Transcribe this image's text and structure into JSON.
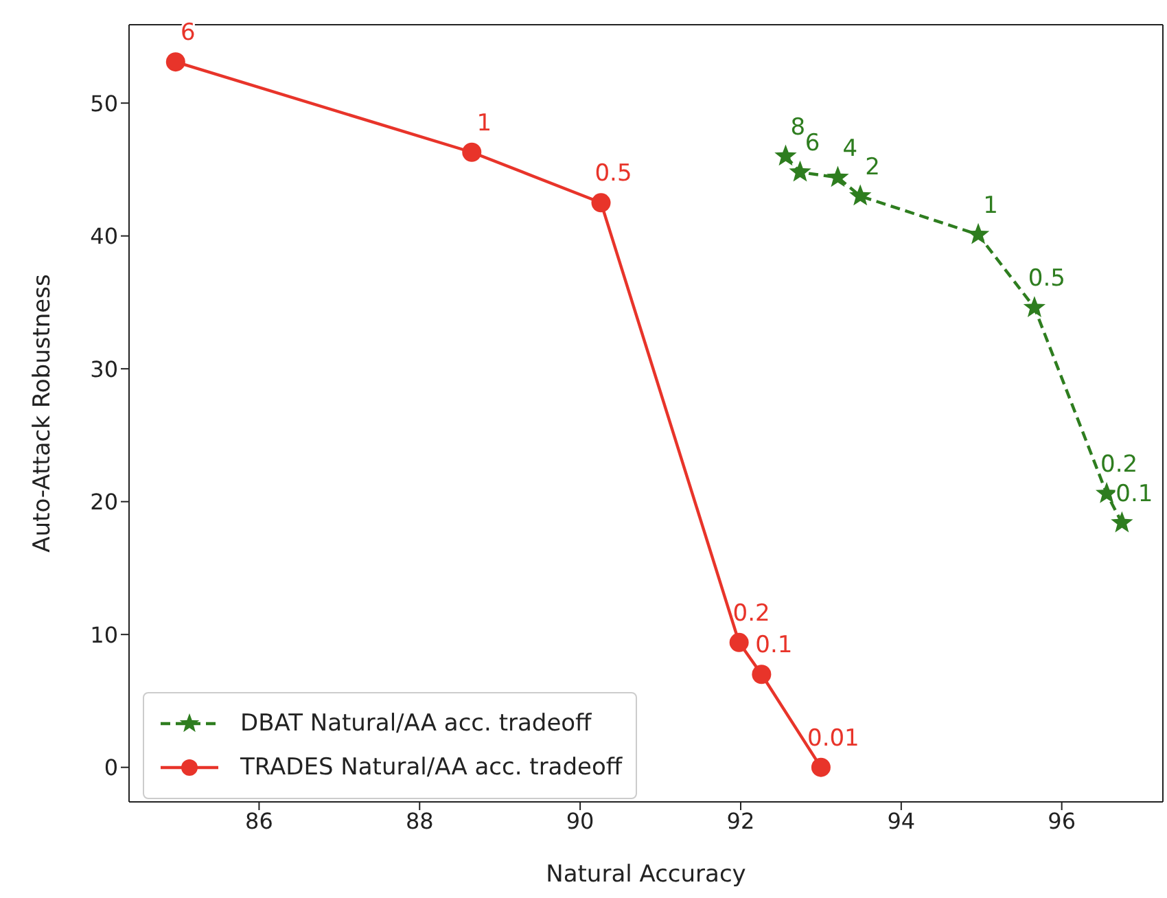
{
  "chart_data": {
    "type": "line",
    "xlabel": "Natural Accuracy",
    "ylabel": "Auto-Attack Robustness",
    "xlim": [
      84.38,
      97.26
    ],
    "xticks": [
      86,
      88,
      90,
      92,
      94,
      96
    ],
    "ylim": [
      -2.6,
      55.9
    ],
    "yticks": [
      0,
      10,
      20,
      30,
      40,
      50
    ],
    "grid": false,
    "legend": "bottom left",
    "series": [
      {
        "name": "DBAT Natural/AA acc. tradeoff",
        "color": "#2e7d1f",
        "marker": "star",
        "line_style": "dashed",
        "x": [
          92.56,
          92.74,
          93.21,
          93.49,
          94.96,
          95.66,
          96.56,
          96.75
        ],
        "values": [
          46.0,
          44.8,
          44.4,
          43.0,
          40.1,
          34.6,
          20.6,
          18.4
        ]
      },
      {
        "name": "TRADES Natural/AA acc. tradeoff",
        "color": "#e8342a",
        "marker": "circle",
        "line_style": "solid",
        "x": [
          84.96,
          88.65,
          90.26,
          91.98,
          92.26,
          93.0
        ],
        "values": [
          53.1,
          46.3,
          42.5,
          9.4,
          7.0,
          0
        ]
      }
    ],
    "annotations": [
      {
        "text": "8",
        "x": 92.56,
        "y": 46.0
      },
      {
        "text": "6",
        "x": 92.74,
        "y": 44.8
      },
      {
        "text": "4",
        "x": 93.21,
        "y": 44.4
      },
      {
        "text": "2",
        "x": 93.49,
        "y": 43.0
      },
      {
        "text": "1",
        "x": 94.96,
        "y": 40.1
      },
      {
        "text": "0.5",
        "x": 95.66,
        "y": 34.6
      },
      {
        "text": "0.2",
        "x": 96.56,
        "y": 20.6
      },
      {
        "text": "0.1",
        "x": 96.75,
        "y": 18.4
      },
      {
        "text": "6",
        "x": 84.96,
        "y": 53.1
      },
      {
        "text": "1",
        "x": 88.65,
        "y": 46.3
      },
      {
        "text": "0.5",
        "x": 90.26,
        "y": 42.5
      },
      {
        "text": "0.2",
        "x": 91.98,
        "y": 9.4
      },
      {
        "text": "0.1",
        "x": 92.26,
        "y": 7.0
      },
      {
        "text": "0.01",
        "x": 93.0,
        "y": 0
      }
    ]
  }
}
